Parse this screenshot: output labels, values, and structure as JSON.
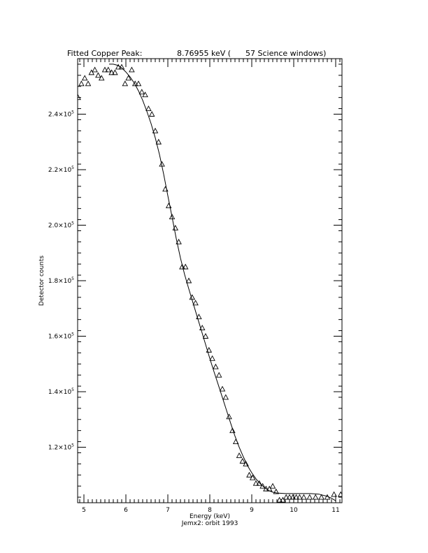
{
  "chart_data": {
    "type": "scatter",
    "title_left": "Fitted Copper Peak:",
    "title_right": "8.76955 keV (      57 Science windows)",
    "xlabel": "Energy (keV)",
    "subtitle": "Jemx2: orbit 1993",
    "ylabel": "Detector counts",
    "xlim": [
      4.85,
      11.15
    ],
    "ylim": [
      100000,
      260000
    ],
    "xticks": [
      5,
      6,
      7,
      8,
      9,
      10,
      11
    ],
    "yticks": [
      {
        "value": 120000,
        "mantissa": "1.2",
        "exponent": "5"
      },
      {
        "value": 140000,
        "mantissa": "1.4",
        "exponent": "5"
      },
      {
        "value": 160000,
        "mantissa": "1.6",
        "exponent": "5"
      },
      {
        "value": 180000,
        "mantissa": "1.8",
        "exponent": "5"
      },
      {
        "value": 200000,
        "mantissa": "2.0",
        "exponent": "5"
      },
      {
        "value": 220000,
        "mantissa": "2.2",
        "exponent": "5"
      },
      {
        "value": 240000,
        "mantissa": "2.4",
        "exponent": "5"
      }
    ],
    "series": [
      {
        "kind": "data-points",
        "marker": "triangle",
        "x": [
          4.86,
          4.94,
          5.02,
          5.1,
          5.18,
          5.26,
          5.34,
          5.42,
          5.5,
          5.58,
          5.66,
          5.74,
          5.82,
          5.9,
          5.98,
          6.06,
          6.14,
          6.22,
          6.3,
          6.38,
          6.46,
          6.54,
          6.62,
          6.7,
          6.78,
          6.86,
          6.94,
          7.02,
          7.1,
          7.18,
          7.26,
          7.34,
          7.42,
          7.5,
          7.58,
          7.66,
          7.74,
          7.82,
          7.9,
          7.98,
          8.06,
          8.14,
          8.22,
          8.3,
          8.38,
          8.46,
          8.54,
          8.62,
          8.7,
          8.78,
          8.86,
          8.94,
          9.02,
          9.1,
          9.18,
          9.26,
          9.34,
          9.42,
          9.5,
          9.58,
          9.66,
          9.74,
          9.82,
          9.9,
          9.98,
          10.06,
          10.14,
          10.24,
          10.38,
          10.52,
          10.66,
          10.8,
          10.96,
          11.12
        ],
        "y": [
          246000,
          251000,
          253000,
          251000,
          255000,
          256000,
          254000,
          253000,
          256000,
          256000,
          255000,
          255000,
          257000,
          257000,
          251000,
          253000,
          256000,
          251000,
          251000,
          248000,
          247000,
          242000,
          240000,
          234000,
          230000,
          222000,
          213000,
          207000,
          203000,
          199000,
          194000,
          185000,
          185000,
          180000,
          174000,
          172000,
          167000,
          163000,
          160000,
          155000,
          152000,
          149000,
          146000,
          141000,
          138000,
          131000,
          126000,
          122000,
          117000,
          115000,
          114000,
          110000,
          109000,
          107000,
          107000,
          106000,
          105000,
          105000,
          106000,
          104000,
          101000,
          101000,
          102000,
          102000,
          102000,
          102000,
          102000,
          102000,
          102000,
          102000,
          102000,
          102000,
          103000,
          103000
        ]
      },
      {
        "kind": "fit-curve",
        "x": [
          5.6,
          5.7,
          5.8,
          5.9,
          6.0,
          6.1,
          6.2,
          6.3,
          6.4,
          6.5,
          6.6,
          6.7,
          6.8,
          6.9,
          7.0,
          7.1,
          7.2,
          7.3,
          7.4,
          7.5,
          7.6,
          7.7,
          7.8,
          7.9,
          8.0,
          8.1,
          8.2,
          8.3,
          8.4,
          8.5,
          8.6,
          8.7,
          8.8,
          8.9,
          9.0,
          9.1,
          9.2,
          9.3,
          9.4,
          9.5,
          9.6,
          9.7,
          9.8,
          9.9,
          10.0,
          10.2,
          10.4,
          10.6,
          10.8,
          10.9,
          11.0
        ],
        "y": [
          258000,
          258000,
          257600,
          256700,
          255200,
          253400,
          251200,
          248400,
          245000,
          241000,
          236600,
          231500,
          225500,
          218400,
          210600,
          203000,
          195200,
          188200,
          182200,
          177000,
          172000,
          167000,
          162000,
          157000,
          152000,
          147200,
          142600,
          137900,
          133200,
          128500,
          124000,
          120000,
          116500,
          113300,
          110800,
          108600,
          106900,
          105500,
          104400,
          103800,
          103500,
          103400,
          103300,
          103300,
          103300,
          103300,
          103300,
          103100,
          102300,
          101600,
          100700
        ]
      }
    ]
  }
}
